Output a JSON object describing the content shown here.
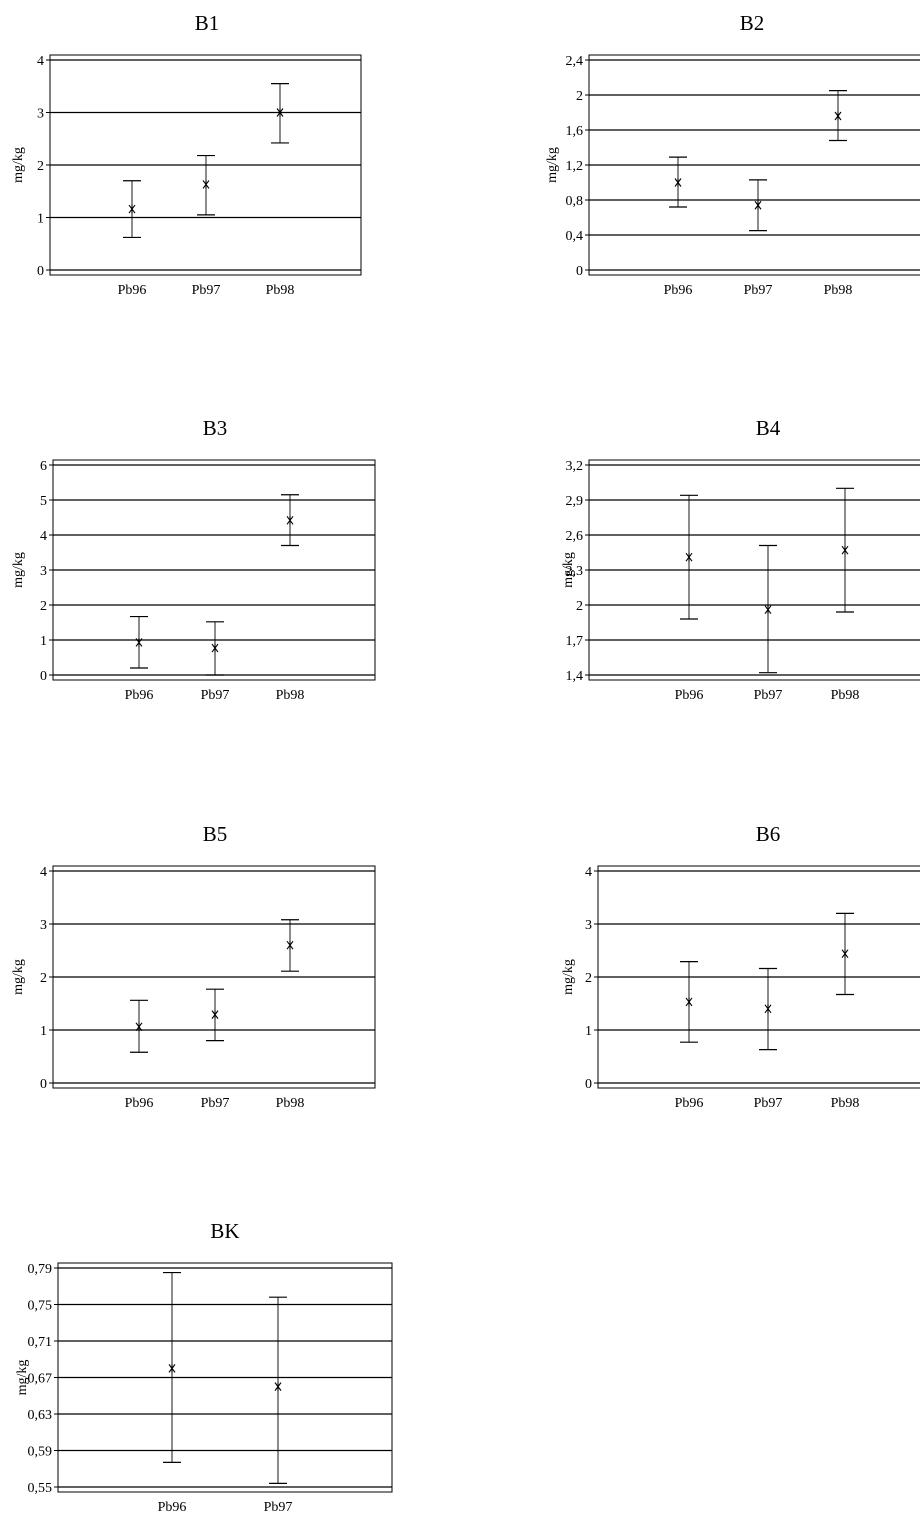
{
  "chart_data": [
    {
      "type": "scatter",
      "title": "B1",
      "ylabel": "mg/kg",
      "categories": [
        "Pb96",
        "Pb97",
        "Pb98"
      ],
      "yticks": [
        "0",
        "1",
        "2",
        "3",
        "4"
      ],
      "ylim": [
        0,
        4
      ],
      "grid": true,
      "series": [
        {
          "values": [
            1.16,
            1.63,
            3.0
          ],
          "lower": [
            0.62,
            1.05,
            2.42
          ],
          "upper": [
            1.7,
            2.18,
            3.55
          ]
        }
      ]
    },
    {
      "type": "scatter",
      "title": "B2",
      "ylabel": "mg/kg",
      "categories": [
        "Pb96",
        "Pb97",
        "Pb98"
      ],
      "yticks": [
        "0",
        "0,4",
        "0,8",
        "1,2",
        "1,6",
        "2",
        "2,4"
      ],
      "ylim": [
        0,
        2.4
      ],
      "grid": true,
      "series": [
        {
          "values": [
            1.0,
            0.74,
            1.76
          ],
          "lower": [
            0.72,
            0.45,
            1.48
          ],
          "upper": [
            1.29,
            1.03,
            2.05
          ]
        }
      ]
    },
    {
      "type": "scatter",
      "title": "B3",
      "ylabel": "mg/kg",
      "categories": [
        "Pb96",
        "Pb97",
        "Pb98"
      ],
      "yticks": [
        "0",
        "1",
        "2",
        "3",
        "4",
        "5",
        "6"
      ],
      "ylim": [
        0,
        6
      ],
      "grid": true,
      "series": [
        {
          "values": [
            0.93,
            0.77,
            4.42
          ],
          "lower": [
            0.2,
            0.0,
            3.7
          ],
          "upper": [
            1.67,
            1.52,
            5.15
          ]
        }
      ]
    },
    {
      "type": "scatter",
      "title": "B4",
      "ylabel": "mg/kg",
      "categories": [
        "Pb96",
        "Pb97",
        "Pb98"
      ],
      "yticks": [
        "1,4",
        "1,7",
        "2",
        "2,3",
        "2,6",
        "2,9",
        "3,2"
      ],
      "ylim": [
        1.4,
        3.2
      ],
      "grid": true,
      "series": [
        {
          "values": [
            2.41,
            1.96,
            2.47
          ],
          "lower": [
            1.88,
            1.42,
            1.94
          ],
          "upper": [
            2.94,
            2.51,
            3.0
          ]
        }
      ]
    },
    {
      "type": "scatter",
      "title": "B5",
      "ylabel": "mg/kg",
      "categories": [
        "Pb96",
        "Pb97",
        "Pb98"
      ],
      "yticks": [
        "0",
        "1",
        "2",
        "3",
        "4"
      ],
      "ylim": [
        0,
        4
      ],
      "grid": true,
      "series": [
        {
          "values": [
            1.06,
            1.29,
            2.6
          ],
          "lower": [
            0.58,
            0.8,
            2.11
          ],
          "upper": [
            1.56,
            1.77,
            3.08
          ]
        }
      ]
    },
    {
      "type": "scatter",
      "title": "B6",
      "ylabel": "mg/kg",
      "categories": [
        "Pb96",
        "Pb97",
        "Pb98"
      ],
      "yticks": [
        "0",
        "1",
        "2",
        "3",
        "4"
      ],
      "ylim": [
        0,
        4
      ],
      "grid": true,
      "series": [
        {
          "values": [
            1.53,
            1.4,
            2.44
          ],
          "lower": [
            0.77,
            0.63,
            1.67
          ],
          "upper": [
            2.29,
            2.16,
            3.2
          ]
        }
      ]
    },
    {
      "type": "scatter",
      "title": "BK",
      "ylabel": "mg/kg",
      "categories": [
        "Pb96",
        "Pb97"
      ],
      "yticks": [
        "0,55",
        "0,59",
        "0,63",
        "0,67",
        "0,71",
        "0,75",
        "0,79"
      ],
      "ylim": [
        0.55,
        0.79
      ],
      "grid": true,
      "series": [
        {
          "values": [
            0.68,
            0.66
          ],
          "lower": [
            0.577,
            0.554
          ],
          "upper": [
            0.785,
            0.758
          ]
        }
      ]
    }
  ]
}
